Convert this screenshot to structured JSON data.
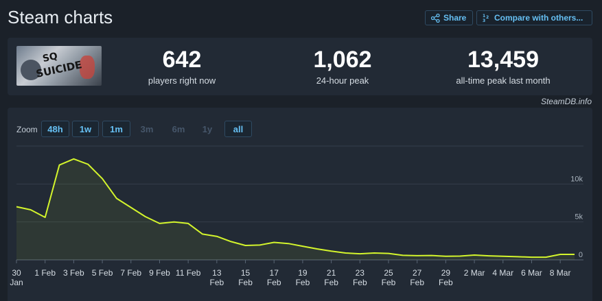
{
  "page": {
    "title": "Steam charts"
  },
  "header": {
    "share_label": "Share",
    "compare_label": "Compare with others..."
  },
  "stats": [
    {
      "value": "642",
      "label": "players right now"
    },
    {
      "value": "1,062",
      "label": "24-hour peak"
    },
    {
      "value": "13,459",
      "label": "all-time peak last month"
    }
  ],
  "game_image": {
    "text_line1": "SQ",
    "text_line2": "SUICIDE"
  },
  "credit": "SteamDB.info",
  "zoom": {
    "label": "Zoom",
    "options": [
      {
        "label": "48h",
        "enabled": true
      },
      {
        "label": "1w",
        "enabled": true
      },
      {
        "label": "1m",
        "enabled": true
      },
      {
        "label": "3m",
        "enabled": false
      },
      {
        "label": "6m",
        "enabled": false
      },
      {
        "label": "1y",
        "enabled": false
      },
      {
        "label": "all",
        "enabled": true,
        "selected": true
      }
    ]
  },
  "colors": {
    "accent": "#66c0f4",
    "line": "#d4f52c",
    "grid": "#343e4a"
  },
  "chart_data": {
    "type": "area",
    "title": "",
    "xlabel": "",
    "ylabel": "",
    "ylim": [
      0,
      15000
    ],
    "y_ticks": [
      0,
      5000,
      10000
    ],
    "y_tick_labels": [
      "0",
      "5k",
      "10k"
    ],
    "grid": true,
    "x_tick_labels": [
      [
        "30",
        "Jan"
      ],
      [
        "1 Feb"
      ],
      [
        "3 Feb"
      ],
      [
        "5 Feb"
      ],
      [
        "7 Feb"
      ],
      [
        "9 Feb"
      ],
      [
        "11 Feb"
      ],
      [
        "13",
        "Feb"
      ],
      [
        "15",
        "Feb"
      ],
      [
        "17",
        "Feb"
      ],
      [
        "19",
        "Feb"
      ],
      [
        "21",
        "Feb"
      ],
      [
        "23",
        "Feb"
      ],
      [
        "25",
        "Feb"
      ],
      [
        "27",
        "Feb"
      ],
      [
        "29",
        "Feb"
      ],
      [
        "2 Mar"
      ],
      [
        "4 Mar"
      ],
      [
        "6 Mar"
      ],
      [
        "8 Mar"
      ]
    ],
    "series": [
      {
        "x": [
          "2024-01-30",
          "2024-01-31",
          "2024-02-01",
          "2024-02-02",
          "2024-02-03",
          "2024-02-04",
          "2024-02-05",
          "2024-02-06",
          "2024-02-07",
          "2024-02-08",
          "2024-02-09",
          "2024-02-10",
          "2024-02-11",
          "2024-02-12",
          "2024-02-13",
          "2024-02-14",
          "2024-02-15",
          "2024-02-16",
          "2024-02-17",
          "2024-02-18",
          "2024-02-19",
          "2024-02-20",
          "2024-02-21",
          "2024-02-22",
          "2024-02-23",
          "2024-02-24",
          "2024-02-25",
          "2024-02-26",
          "2024-02-27",
          "2024-02-28",
          "2024-02-29",
          "2024-03-01",
          "2024-03-02",
          "2024-03-03",
          "2024-03-04",
          "2024-03-05",
          "2024-03-06",
          "2024-03-07",
          "2024-03-08",
          "2024-03-09"
        ],
        "values": [
          7000,
          6600,
          5600,
          12500,
          13300,
          12600,
          10700,
          8100,
          6900,
          5700,
          4800,
          5000,
          4800,
          3400,
          3100,
          2400,
          1900,
          1950,
          2300,
          2150,
          1800,
          1450,
          1150,
          900,
          800,
          900,
          850,
          600,
          550,
          580,
          480,
          500,
          630,
          530,
          470,
          420,
          350,
          350,
          720,
          720
        ]
      }
    ]
  }
}
